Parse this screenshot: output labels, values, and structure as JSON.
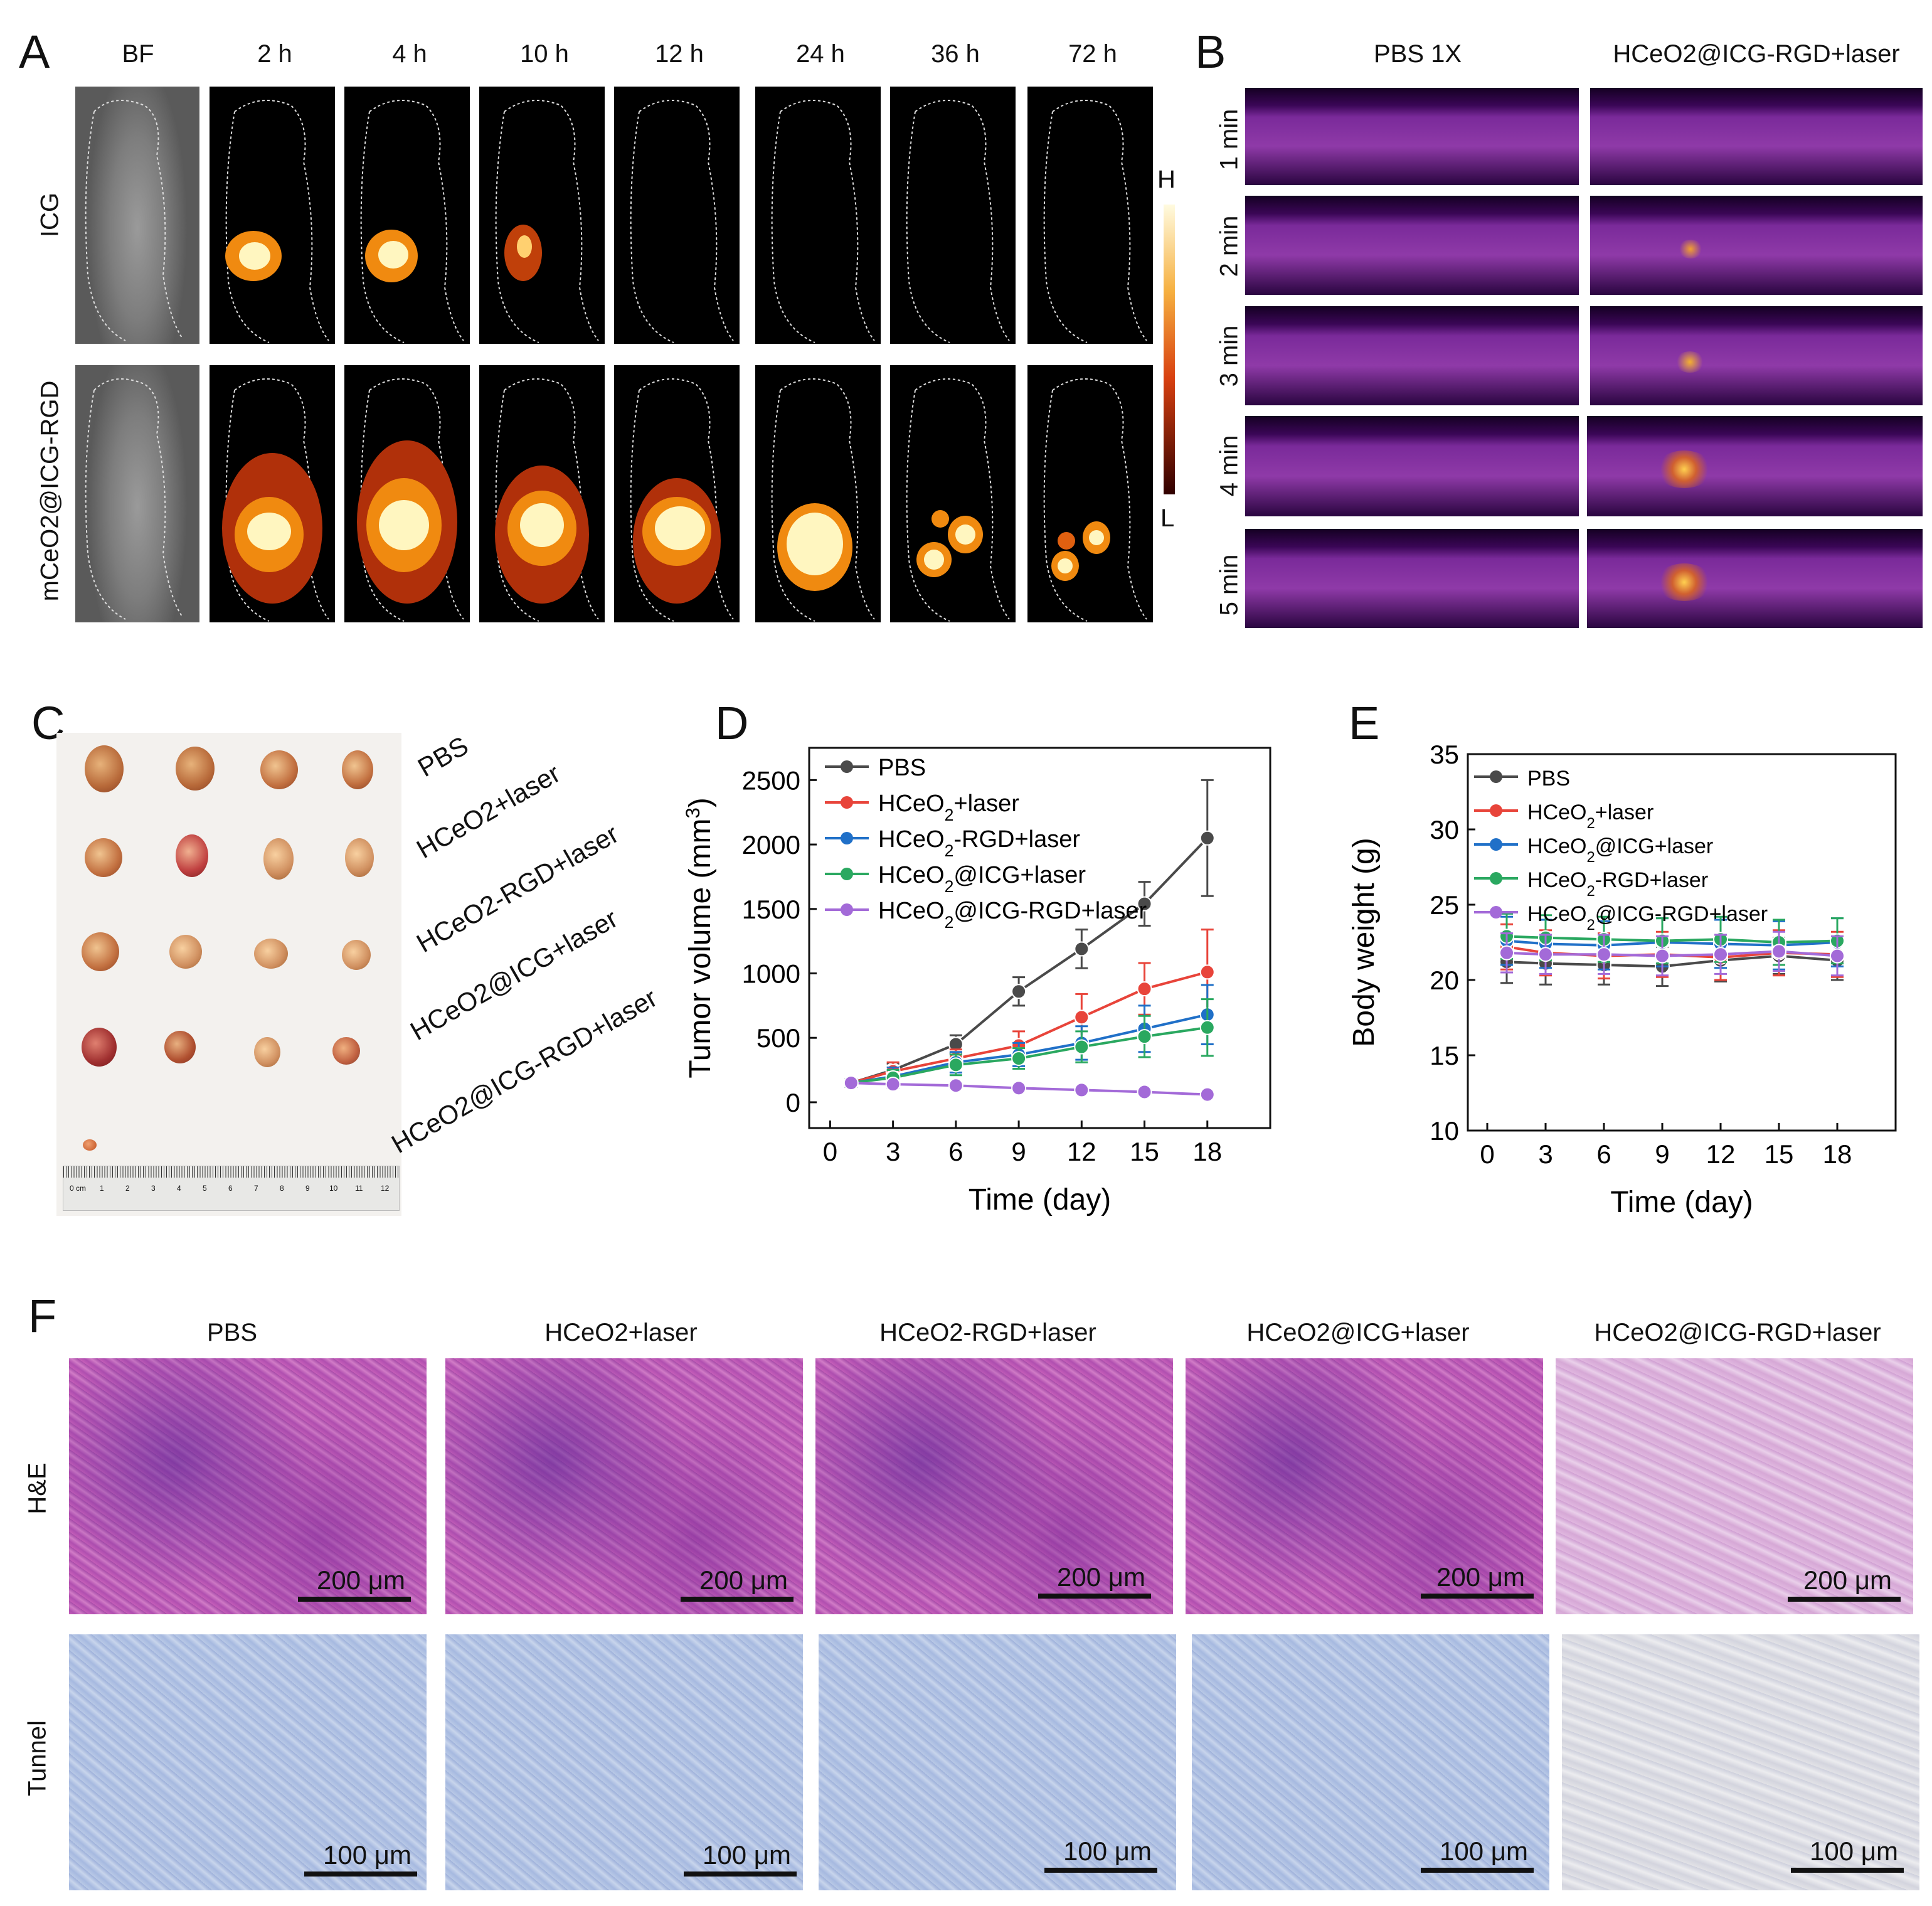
{
  "panels": {
    "a": "A",
    "b": "B",
    "c": "C",
    "d": "D",
    "e": "E",
    "f": "F"
  },
  "panelA": {
    "columns": [
      "BF",
      "2 h",
      "4 h",
      "10 h",
      "12 h",
      "24 h",
      "36 h",
      "72 h"
    ],
    "rows": [
      "ICG",
      "mCeO2@ICG-RGD"
    ],
    "colorbar": {
      "high": "H",
      "low": "L"
    }
  },
  "panelB": {
    "columns": [
      "PBS 1X",
      "HCeO2@ICG-RGD+laser"
    ],
    "rows": [
      "1 min",
      "2 min",
      "3 min",
      "4 min",
      "5 min"
    ]
  },
  "panelC": {
    "groups": [
      "PBS",
      "HCeO2+laser",
      "HCeO2-RGD+laser",
      "HCeO2@ICG+laser",
      "HCeO2@ICG-RGD+laser"
    ],
    "ruler_unit": "0 cm",
    "ruler_ticks": [
      "1",
      "2",
      "3",
      "4",
      "5",
      "6",
      "7",
      "8",
      "9",
      "10",
      "11",
      "12"
    ]
  },
  "chart_data": [
    {
      "type": "line",
      "xlabel": "Time (day)",
      "ylabel": "Tumor volume (mm3)",
      "xlim": [
        -1,
        21
      ],
      "ylim": [
        -200,
        2750
      ],
      "xticks": [
        0,
        3,
        6,
        9,
        12,
        15,
        18
      ],
      "yticks": [
        0,
        500,
        1000,
        1500,
        2000,
        2500
      ],
      "x": [
        1,
        3,
        6,
        9,
        12,
        15,
        18
      ],
      "legend_position": "top-left",
      "series": [
        {
          "name": "PBS",
          "color": "#4a4a4a",
          "values": [
            150,
            250,
            450,
            860,
            1190,
            1540,
            2050
          ],
          "errors": [
            30,
            50,
            70,
            110,
            150,
            170,
            450
          ]
        },
        {
          "name": "HCeO2+laser",
          "color": "#e8443a",
          "values": [
            150,
            240,
            340,
            440,
            660,
            880,
            1010
          ],
          "errors": [
            30,
            70,
            70,
            110,
            180,
            200,
            330
          ]
        },
        {
          "name": "HCeO2-RGD+laser",
          "color": "#2070c8",
          "values": [
            150,
            200,
            310,
            370,
            460,
            570,
            680
          ],
          "errors": [
            30,
            70,
            80,
            90,
            130,
            180,
            230
          ]
        },
        {
          "name": "HCeO2@ICG+laser",
          "color": "#2aa860",
          "values": [
            150,
            190,
            290,
            340,
            430,
            510,
            580
          ],
          "errors": [
            30,
            60,
            80,
            80,
            120,
            160,
            220
          ]
        },
        {
          "name": "HCeO2@ICG-RGD+laser",
          "color": "#a36ad8",
          "values": [
            150,
            140,
            130,
            110,
            95,
            80,
            60
          ],
          "errors": [
            25,
            30,
            25,
            20,
            20,
            20,
            15
          ]
        }
      ]
    },
    {
      "type": "line",
      "xlabel": "Time (day)",
      "ylabel": "Body weight (g)",
      "xlim": [
        -1,
        21
      ],
      "ylim": [
        10,
        35
      ],
      "xticks": [
        0,
        3,
        6,
        9,
        12,
        15,
        18
      ],
      "yticks": [
        10,
        15,
        20,
        25,
        30,
        35
      ],
      "x": [
        1,
        3,
        6,
        9,
        12,
        15,
        18
      ],
      "legend_position": "top-left",
      "series": [
        {
          "name": "PBS",
          "color": "#4a4a4a",
          "values": [
            21.2,
            21.1,
            21.0,
            20.9,
            21.3,
            21.6,
            21.3
          ],
          "errors": [
            1.4,
            1.4,
            1.3,
            1.3,
            1.4,
            1.2,
            1.3
          ]
        },
        {
          "name": "HCeO2+laser",
          "color": "#e8443a",
          "values": [
            22.2,
            21.8,
            21.6,
            21.7,
            21.5,
            21.8,
            21.7
          ],
          "errors": [
            1.5,
            1.5,
            1.5,
            1.5,
            1.5,
            1.5,
            1.5
          ]
        },
        {
          "name": "HCeO2@ICG+laser",
          "color": "#2070c8",
          "values": [
            22.6,
            22.4,
            22.3,
            22.5,
            22.4,
            22.3,
            22.5
          ],
          "errors": [
            1.6,
            1.6,
            1.6,
            1.6,
            1.6,
            1.6,
            1.6
          ]
        },
        {
          "name": "HCeO2-RGD+laser",
          "color": "#2aa860",
          "values": [
            22.9,
            22.8,
            22.7,
            22.6,
            22.7,
            22.5,
            22.6
          ],
          "errors": [
            1.5,
            1.5,
            1.5,
            1.5,
            1.5,
            1.5,
            1.5
          ]
        },
        {
          "name": "HCeO2@ICG-RGD+laser",
          "color": "#a36ad8",
          "values": [
            21.8,
            21.7,
            21.7,
            21.6,
            21.7,
            21.9,
            21.6
          ],
          "errors": [
            1.3,
            1.3,
            1.3,
            1.3,
            1.3,
            1.3,
            1.3
          ]
        }
      ]
    }
  ],
  "panelF": {
    "columns": [
      "PBS",
      "HCeO2+laser",
      "HCeO2-RGD+laser",
      "HCeO2@ICG+laser",
      "HCeO2@ICG-RGD+laser"
    ],
    "rows": [
      "H&E",
      "Tunnel"
    ],
    "scale_he": "200 μm",
    "scale_tunnel": "100 μm"
  }
}
